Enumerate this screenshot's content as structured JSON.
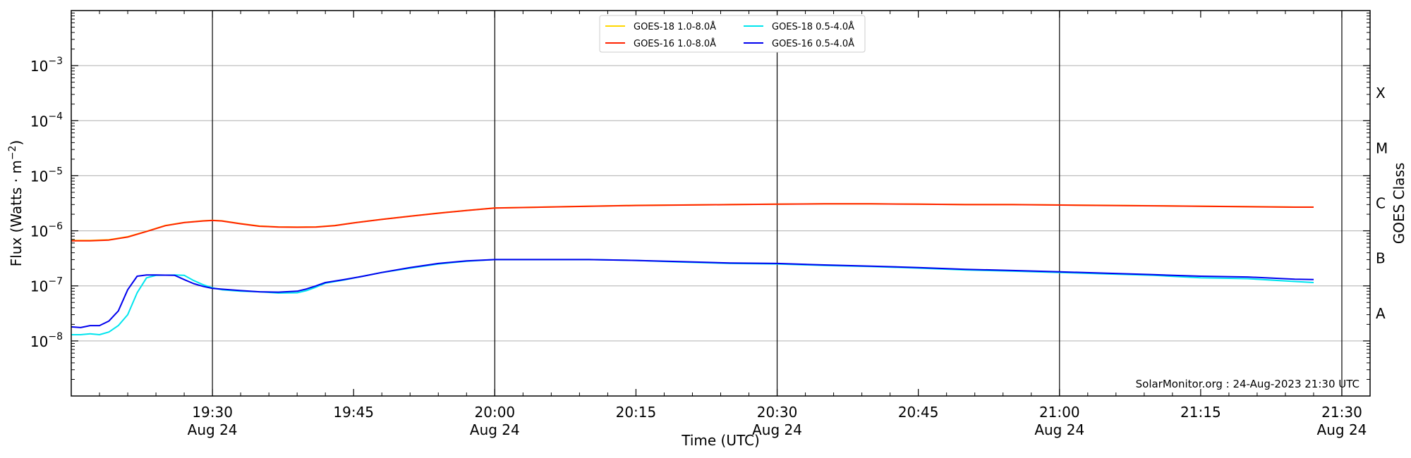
{
  "chart_data": {
    "type": "line",
    "xlabel": "Time (UTC)",
    "ylabel": "Flux (Watts · m⁻²)",
    "right_axis_label": "GOES Class",
    "footer": "SolarMonitor.org : 24-Aug-2023 21:30 UTC",
    "y_scale": "log",
    "ylim": [
      1e-09,
      0.01
    ],
    "xlim": [
      "19:15",
      "21:33"
    ],
    "x_ticks": [
      {
        "time": "19:30",
        "line1": "19:30",
        "line2": "Aug 24",
        "major": true
      },
      {
        "time": "19:45",
        "line1": "19:45",
        "line2": "",
        "major": false
      },
      {
        "time": "20:00",
        "line1": "20:00",
        "line2": "Aug 24",
        "major": true
      },
      {
        "time": "20:15",
        "line1": "20:15",
        "line2": "",
        "major": false
      },
      {
        "time": "20:30",
        "line1": "20:30",
        "line2": "Aug 24",
        "major": true
      },
      {
        "time": "20:45",
        "line1": "20:45",
        "line2": "",
        "major": false
      },
      {
        "time": "21:00",
        "line1": "21:00",
        "line2": "Aug 24",
        "major": true
      },
      {
        "time": "21:15",
        "line1": "21:15",
        "line2": "",
        "major": false
      },
      {
        "time": "21:30",
        "line1": "21:30",
        "line2": "Aug 24",
        "major": true
      }
    ],
    "y_ticks": [
      {
        "exp": -8,
        "base": "10",
        "sup": "−8"
      },
      {
        "exp": -7,
        "base": "10",
        "sup": "−7"
      },
      {
        "exp": -6,
        "base": "10",
        "sup": "−6"
      },
      {
        "exp": -5,
        "base": "10",
        "sup": "−5"
      },
      {
        "exp": -4,
        "base": "10",
        "sup": "−4"
      },
      {
        "exp": -3,
        "base": "10",
        "sup": "−3"
      }
    ],
    "goes_classes": [
      {
        "label": "A",
        "exp": -7.5
      },
      {
        "label": "B",
        "exp": -6.5
      },
      {
        "label": "C",
        "exp": -5.5
      },
      {
        "label": "M",
        "exp": -4.5
      },
      {
        "label": "X",
        "exp": -3.5
      }
    ],
    "grid": {
      "horizontal": true,
      "vertical_major": true
    },
    "legend_position": "top-center",
    "series": [
      {
        "name": "GOES-18 1.0-8.0Å",
        "color": "#ffd700",
        "x": [
          "19:15",
          "19:17",
          "19:19",
          "19:21",
          "19:23",
          "19:25",
          "19:27",
          "19:29",
          "19:30",
          "19:31",
          "19:33",
          "19:35",
          "19:37",
          "19:39",
          "19:41",
          "19:43",
          "19:45",
          "19:48",
          "19:51",
          "19:54",
          "19:57",
          "20:00",
          "20:05",
          "20:10",
          "20:15",
          "20:20",
          "20:25",
          "20:30",
          "20:35",
          "20:40",
          "20:45",
          "20:50",
          "20:55",
          "21:00",
          "21:05",
          "21:10",
          "21:15",
          "21:20",
          "21:25",
          "21:27"
        ],
        "y": [
          6.7e-07,
          6.7e-07,
          6.9e-07,
          7.8e-07,
          9.8e-07,
          1.25e-06,
          1.42e-06,
          1.52e-06,
          1.55e-06,
          1.52e-06,
          1.35e-06,
          1.22e-06,
          1.18e-06,
          1.17e-06,
          1.18e-06,
          1.25e-06,
          1.4e-06,
          1.62e-06,
          1.85e-06,
          2.1e-06,
          2.35e-06,
          2.6e-06,
          2.7e-06,
          2.8e-06,
          2.9e-06,
          2.95e-06,
          3e-06,
          3.05e-06,
          3.1e-06,
          3.1e-06,
          3.05e-06,
          3e-06,
          3e-06,
          2.95e-06,
          2.9e-06,
          2.85e-06,
          2.8e-06,
          2.75e-06,
          2.7e-06,
          2.7e-06
        ]
      },
      {
        "name": "GOES-18 0.5-4.0Å",
        "color": "#00e5ee",
        "x": [
          "19:15",
          "19:16",
          "19:17",
          "19:18",
          "19:19",
          "19:20",
          "19:21",
          "19:22",
          "19:23",
          "19:24",
          "19:26",
          "19:27",
          "19:28",
          "19:29",
          "19:30",
          "19:31",
          "19:33",
          "19:35",
          "19:37",
          "19:39",
          "19:40",
          "19:41",
          "19:42",
          "19:44",
          "19:46",
          "19:48",
          "19:51",
          "19:54",
          "19:57",
          "20:00",
          "20:05",
          "20:10",
          "20:15",
          "20:20",
          "20:25",
          "20:30",
          "20:35",
          "20:40",
          "20:45",
          "20:50",
          "20:55",
          "21:00",
          "21:05",
          "21:10",
          "21:15",
          "21:20",
          "21:25",
          "21:27"
        ],
        "y": [
          1.3e-08,
          1.3e-08,
          1.35e-08,
          1.3e-08,
          1.45e-08,
          1.9e-08,
          3e-08,
          7.5e-08,
          1.4e-07,
          1.55e-07,
          1.58e-07,
          1.55e-07,
          1.25e-07,
          1.05e-07,
          9.2e-08,
          8.5e-08,
          8e-08,
          7.8e-08,
          7.4e-08,
          7.5e-08,
          8.2e-08,
          9.5e-08,
          1.12e-07,
          1.28e-07,
          1.5e-07,
          1.75e-07,
          2.1e-07,
          2.5e-07,
          2.8e-07,
          3e-07,
          3e-07,
          3e-07,
          2.9e-07,
          2.7e-07,
          2.55e-07,
          2.5e-07,
          2.35e-07,
          2.25e-07,
          2.1e-07,
          1.95e-07,
          1.85e-07,
          1.75e-07,
          1.65e-07,
          1.55e-07,
          1.4e-07,
          1.35e-07,
          1.2e-07,
          1.15e-07
        ]
      },
      {
        "name": "GOES-16 1.0-8.0Å",
        "color": "#ff2200",
        "x": [
          "19:15",
          "19:17",
          "19:19",
          "19:21",
          "19:23",
          "19:25",
          "19:27",
          "19:29",
          "19:30",
          "19:31",
          "19:33",
          "19:35",
          "19:37",
          "19:39",
          "19:41",
          "19:43",
          "19:45",
          "19:48",
          "19:51",
          "19:54",
          "19:57",
          "20:00",
          "20:05",
          "20:10",
          "20:15",
          "20:20",
          "20:25",
          "20:30",
          "20:35",
          "20:40",
          "20:45",
          "20:50",
          "20:55",
          "21:00",
          "21:05",
          "21:10",
          "21:15",
          "21:20",
          "21:25",
          "21:27"
        ],
        "y": [
          6.6e-07,
          6.6e-07,
          6.8e-07,
          7.7e-07,
          9.7e-07,
          1.24e-06,
          1.41e-06,
          1.51e-06,
          1.54e-06,
          1.51e-06,
          1.34e-06,
          1.21e-06,
          1.17e-06,
          1.16e-06,
          1.17e-06,
          1.24e-06,
          1.39e-06,
          1.61e-06,
          1.84e-06,
          2.09e-06,
          2.34e-06,
          2.59e-06,
          2.69e-06,
          2.79e-06,
          2.89e-06,
          2.94e-06,
          2.99e-06,
          3.04e-06,
          3.09e-06,
          3.09e-06,
          3.04e-06,
          2.99e-06,
          2.99e-06,
          2.94e-06,
          2.89e-06,
          2.84e-06,
          2.79e-06,
          2.74e-06,
          2.69e-06,
          2.69e-06
        ]
      },
      {
        "name": "GOES-16 0.5-4.0Å",
        "color": "#0000ee",
        "x": [
          "19:15",
          "19:16",
          "19:17",
          "19:18",
          "19:19",
          "19:20",
          "19:21",
          "19:22",
          "19:23",
          "19:24",
          "19:26",
          "19:27",
          "19:28",
          "19:29",
          "19:30",
          "19:31",
          "19:33",
          "19:35",
          "19:37",
          "19:39",
          "19:40",
          "19:41",
          "19:42",
          "19:44",
          "19:46",
          "19:48",
          "19:51",
          "19:54",
          "19:57",
          "20:00",
          "20:05",
          "20:10",
          "20:15",
          "20:20",
          "20:25",
          "20:30",
          "20:35",
          "20:40",
          "20:45",
          "20:50",
          "20:55",
          "21:00",
          "21:05",
          "21:10",
          "21:15",
          "21:20",
          "21:25",
          "21:27"
        ],
        "y": [
          1.8e-08,
          1.75e-08,
          1.9e-08,
          1.9e-08,
          2.3e-08,
          3.5e-08,
          8.5e-08,
          1.5e-07,
          1.58e-07,
          1.58e-07,
          1.55e-07,
          1.3e-07,
          1.1e-07,
          9.8e-08,
          9e-08,
          8.7e-08,
          8.2e-08,
          7.8e-08,
          7.7e-08,
          8e-08,
          8.8e-08,
          1e-07,
          1.15e-07,
          1.3e-07,
          1.5e-07,
          1.75e-07,
          2.15e-07,
          2.55e-07,
          2.85e-07,
          3e-07,
          3e-07,
          3e-07,
          2.9e-07,
          2.75e-07,
          2.6e-07,
          2.55e-07,
          2.4e-07,
          2.28e-07,
          2.15e-07,
          2e-07,
          1.9e-07,
          1.8e-07,
          1.7e-07,
          1.6e-07,
          1.5e-07,
          1.45e-07,
          1.32e-07,
          1.3e-07
        ]
      }
    ],
    "legend_order": [
      0,
      2,
      1,
      3
    ]
  }
}
